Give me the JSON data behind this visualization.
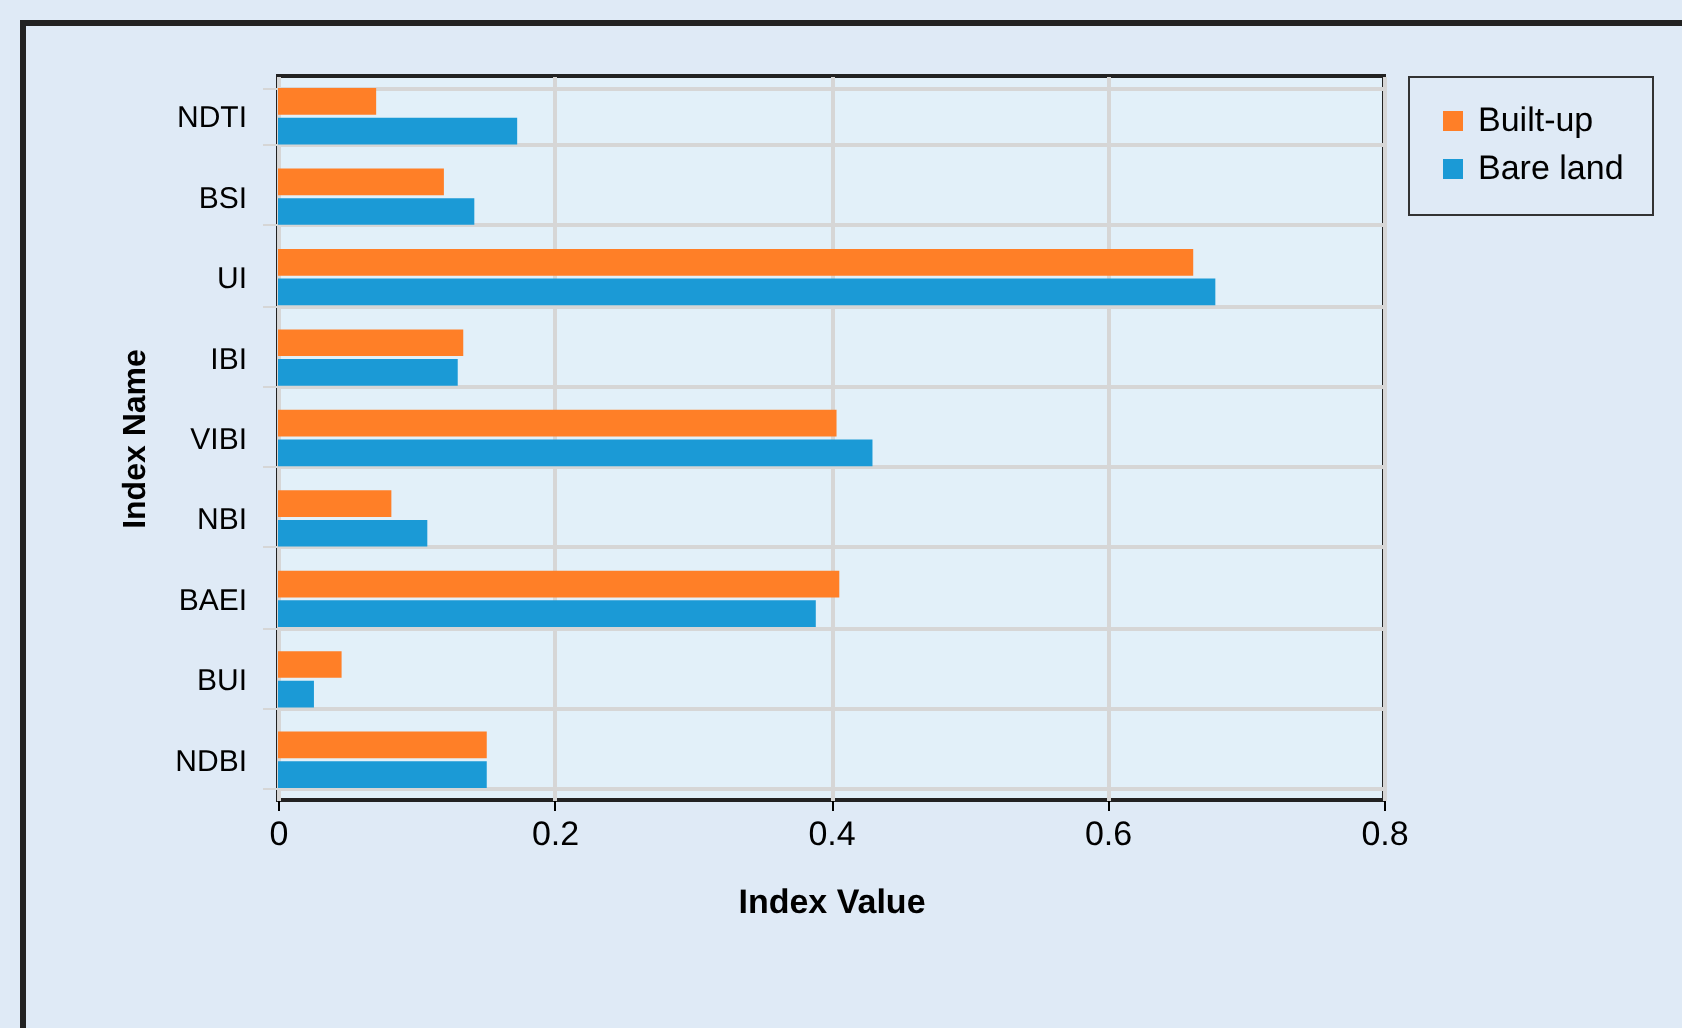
{
  "chart_data": {
    "type": "bar",
    "orientation": "horizontal",
    "xlabel": "Index Value",
    "ylabel": "Index Name",
    "categories": [
      "NDTI",
      "BSI",
      "UI",
      "IBI",
      "VIBI",
      "NBI",
      "BAEI",
      "BUI",
      "NDBI"
    ],
    "series": [
      {
        "name": "Built-up",
        "color": "#ff7f27",
        "values": [
          0.071,
          0.12,
          0.662,
          0.134,
          0.404,
          0.082,
          0.406,
          0.046,
          0.151
        ]
      },
      {
        "name": "Bare land",
        "color": "#1b9ad6",
        "values": [
          0.173,
          0.142,
          0.678,
          0.13,
          0.43,
          0.108,
          0.389,
          0.026,
          0.151
        ]
      }
    ],
    "xlim": [
      0,
      0.8
    ],
    "xticks": [
      0,
      0.2,
      0.4,
      0.6,
      0.8
    ],
    "grid": true,
    "legend": "right"
  }
}
